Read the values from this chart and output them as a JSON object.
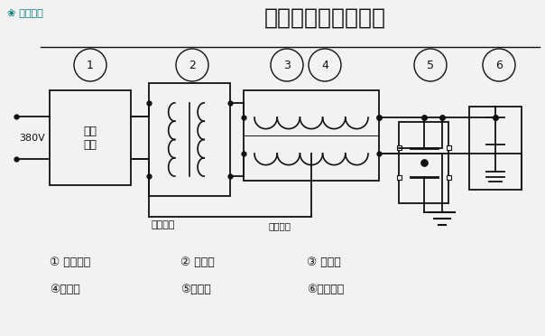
{
  "title": "电缆耐压试验接线图",
  "logo_text": "⛄木森電氣",
  "logo_color": "#007a7a",
  "bg_color": "#f2f2f2",
  "line_color": "#111111",
  "title_fontsize": 18,
  "legend_row1": [
    {
      "num": "①",
      "label": " 变频电源"
    },
    {
      "num": "②",
      "label": " 激励变"
    },
    {
      "num": "③",
      "label": " 电抗器"
    }
  ],
  "legend_row2": [
    {
      "num": "④",
      "label": "电抗器"
    },
    {
      "num": "⑤",
      "label": "分压器"
    },
    {
      "num": "⑥",
      "label": "试品电缆"
    }
  ],
  "measure_label": "测量输入",
  "input_label": "380V"
}
